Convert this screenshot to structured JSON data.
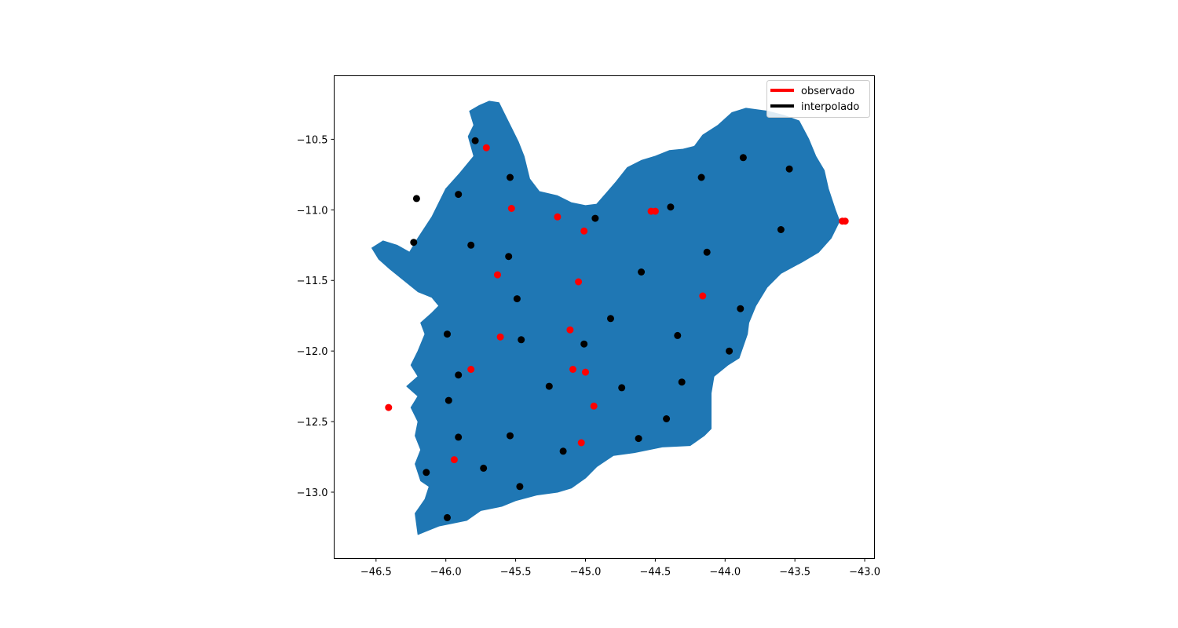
{
  "chart_data": {
    "type": "scatter",
    "title": "",
    "xlabel": "",
    "ylabel": "",
    "xlim": [
      -46.8,
      -42.93
    ],
    "ylim": [
      -13.47,
      -10.05
    ],
    "x_ticks": [
      -46.5,
      -46.0,
      -45.5,
      -45.0,
      -44.5,
      -44.0,
      -43.5,
      -43.0
    ],
    "x_tick_labels": [
      "−46.5",
      "−46.0",
      "−45.5",
      "−45.0",
      "−44.5",
      "−44.0",
      "−43.5",
      "−43.0"
    ],
    "y_ticks": [
      -10.5,
      -11.0,
      -11.5,
      -12.0,
      -12.5,
      -13.0
    ],
    "y_tick_labels": [
      "−10.5",
      "−11.0",
      "−11.5",
      "−12.0",
      "−12.5",
      "−13.0"
    ],
    "grid": false,
    "legend_position": "top-right",
    "region": {
      "fill_color": "#1f77b4",
      "outline": [
        [
          -46.26,
          -11.3
        ],
        [
          -46.2,
          -11.2
        ],
        [
          -46.1,
          -11.05
        ],
        [
          -46.0,
          -10.85
        ],
        [
          -45.9,
          -10.74
        ],
        [
          -45.8,
          -10.62
        ],
        [
          -45.84,
          -10.48
        ],
        [
          -45.8,
          -10.4
        ],
        [
          -45.83,
          -10.3
        ],
        [
          -45.76,
          -10.26
        ],
        [
          -45.69,
          -10.23
        ],
        [
          -45.62,
          -10.24
        ],
        [
          -45.58,
          -10.32
        ],
        [
          -45.53,
          -10.42
        ],
        [
          -45.48,
          -10.52
        ],
        [
          -45.44,
          -10.62
        ],
        [
          -45.4,
          -10.78
        ],
        [
          -45.33,
          -10.87
        ],
        [
          -45.2,
          -10.9
        ],
        [
          -45.1,
          -10.95
        ],
        [
          -45.0,
          -10.97
        ],
        [
          -44.92,
          -10.96
        ],
        [
          -44.85,
          -10.88
        ],
        [
          -44.78,
          -10.8
        ],
        [
          -44.7,
          -10.7
        ],
        [
          -44.6,
          -10.65
        ],
        [
          -44.5,
          -10.62
        ],
        [
          -44.4,
          -10.58
        ],
        [
          -44.3,
          -10.57
        ],
        [
          -44.22,
          -10.55
        ],
        [
          -44.16,
          -10.47
        ],
        [
          -44.05,
          -10.4
        ],
        [
          -43.95,
          -10.31
        ],
        [
          -43.85,
          -10.28
        ],
        [
          -43.7,
          -10.3
        ],
        [
          -43.58,
          -10.33
        ],
        [
          -43.47,
          -10.37
        ],
        [
          -43.4,
          -10.5
        ],
        [
          -43.35,
          -10.62
        ],
        [
          -43.29,
          -10.72
        ],
        [
          -43.26,
          -10.85
        ],
        [
          -43.21,
          -11.0
        ],
        [
          -43.18,
          -11.08
        ],
        [
          -43.24,
          -11.2
        ],
        [
          -43.33,
          -11.3
        ],
        [
          -43.45,
          -11.37
        ],
        [
          -43.6,
          -11.45
        ],
        [
          -43.7,
          -11.55
        ],
        [
          -43.78,
          -11.68
        ],
        [
          -43.83,
          -11.8
        ],
        [
          -43.84,
          -11.88
        ],
        [
          -43.9,
          -12.05
        ],
        [
          -43.98,
          -12.1
        ],
        [
          -44.08,
          -12.18
        ],
        [
          -44.1,
          -12.3
        ],
        [
          -44.1,
          -12.4
        ],
        [
          -44.1,
          -12.55
        ],
        [
          -44.15,
          -12.6
        ],
        [
          -44.25,
          -12.67
        ],
        [
          -44.45,
          -12.68
        ],
        [
          -44.65,
          -12.72
        ],
        [
          -44.8,
          -12.74
        ],
        [
          -44.92,
          -12.82
        ],
        [
          -45.0,
          -12.9
        ],
        [
          -45.1,
          -12.97
        ],
        [
          -45.2,
          -13.0
        ],
        [
          -45.35,
          -13.02
        ],
        [
          -45.5,
          -13.06
        ],
        [
          -45.6,
          -13.1
        ],
        [
          -45.75,
          -13.13
        ],
        [
          -45.85,
          -13.2
        ],
        [
          -45.95,
          -13.22
        ],
        [
          -46.05,
          -13.24
        ],
        [
          -46.15,
          -13.28
        ],
        [
          -46.2,
          -13.3
        ],
        [
          -46.22,
          -13.15
        ],
        [
          -46.15,
          -13.05
        ],
        [
          -46.12,
          -12.96
        ],
        [
          -46.18,
          -12.92
        ],
        [
          -46.22,
          -12.8
        ],
        [
          -46.18,
          -12.7
        ],
        [
          -46.22,
          -12.6
        ],
        [
          -46.2,
          -12.5
        ],
        [
          -46.25,
          -12.4
        ],
        [
          -46.2,
          -12.32
        ],
        [
          -46.28,
          -12.25
        ],
        [
          -46.2,
          -12.18
        ],
        [
          -46.25,
          -12.1
        ],
        [
          -46.2,
          -12.0
        ],
        [
          -46.15,
          -11.88
        ],
        [
          -46.18,
          -11.8
        ],
        [
          -46.1,
          -11.73
        ],
        [
          -46.05,
          -11.68
        ],
        [
          -46.1,
          -11.62
        ],
        [
          -46.2,
          -11.58
        ],
        [
          -46.3,
          -11.5
        ],
        [
          -46.4,
          -11.42
        ],
        [
          -46.48,
          -11.35
        ],
        [
          -46.53,
          -11.27
        ],
        [
          -46.45,
          -11.22
        ],
        [
          -46.35,
          -11.25
        ]
      ]
    },
    "series": [
      {
        "name": "observado",
        "color": "#ff0000",
        "points": [
          [
            -45.71,
            -10.56
          ],
          [
            -45.53,
            -10.99
          ],
          [
            -45.2,
            -11.05
          ],
          [
            -45.01,
            -11.15
          ],
          [
            -44.53,
            -11.01
          ],
          [
            -44.5,
            -11.01
          ],
          [
            -43.16,
            -11.08
          ],
          [
            -43.14,
            -11.08
          ],
          [
            -45.63,
            -11.46
          ],
          [
            -45.05,
            -11.51
          ],
          [
            -44.16,
            -11.61
          ],
          [
            -45.11,
            -11.85
          ],
          [
            -45.61,
            -11.9
          ],
          [
            -45.82,
            -12.13
          ],
          [
            -45.09,
            -12.13
          ],
          [
            -45.0,
            -12.15
          ],
          [
            -44.94,
            -12.39
          ],
          [
            -46.41,
            -12.4
          ],
          [
            -45.03,
            -12.65
          ],
          [
            -45.94,
            -12.77
          ]
        ]
      },
      {
        "name": "interpolado",
        "color": "#000000",
        "points": [
          [
            -45.79,
            -10.51
          ],
          [
            -43.87,
            -10.63
          ],
          [
            -43.54,
            -10.71
          ],
          [
            -45.54,
            -10.77
          ],
          [
            -44.17,
            -10.77
          ],
          [
            -45.91,
            -10.89
          ],
          [
            -46.21,
            -10.92
          ],
          [
            -44.39,
            -10.98
          ],
          [
            -44.93,
            -11.06
          ],
          [
            -43.6,
            -11.14
          ],
          [
            -46.23,
            -11.23
          ],
          [
            -45.82,
            -11.25
          ],
          [
            -44.13,
            -11.3
          ],
          [
            -45.55,
            -11.33
          ],
          [
            -44.6,
            -11.44
          ],
          [
            -45.49,
            -11.63
          ],
          [
            -43.89,
            -11.7
          ],
          [
            -44.82,
            -11.77
          ],
          [
            -45.99,
            -11.88
          ],
          [
            -44.34,
            -11.89
          ],
          [
            -45.46,
            -11.92
          ],
          [
            -45.01,
            -11.95
          ],
          [
            -43.97,
            -12.0
          ],
          [
            -45.91,
            -12.17
          ],
          [
            -44.31,
            -12.22
          ],
          [
            -45.26,
            -12.25
          ],
          [
            -44.74,
            -12.26
          ],
          [
            -45.98,
            -12.35
          ],
          [
            -44.42,
            -12.48
          ],
          [
            -45.54,
            -12.6
          ],
          [
            -45.91,
            -12.61
          ],
          [
            -44.62,
            -12.62
          ],
          [
            -45.16,
            -12.71
          ],
          [
            -45.73,
            -12.83
          ],
          [
            -46.14,
            -12.86
          ],
          [
            -45.47,
            -12.96
          ],
          [
            -45.99,
            -13.18
          ]
        ]
      }
    ]
  },
  "legend": {
    "items": [
      {
        "label": "observado",
        "color": "#ff0000"
      },
      {
        "label": "interpolado",
        "color": "#000000"
      }
    ]
  }
}
